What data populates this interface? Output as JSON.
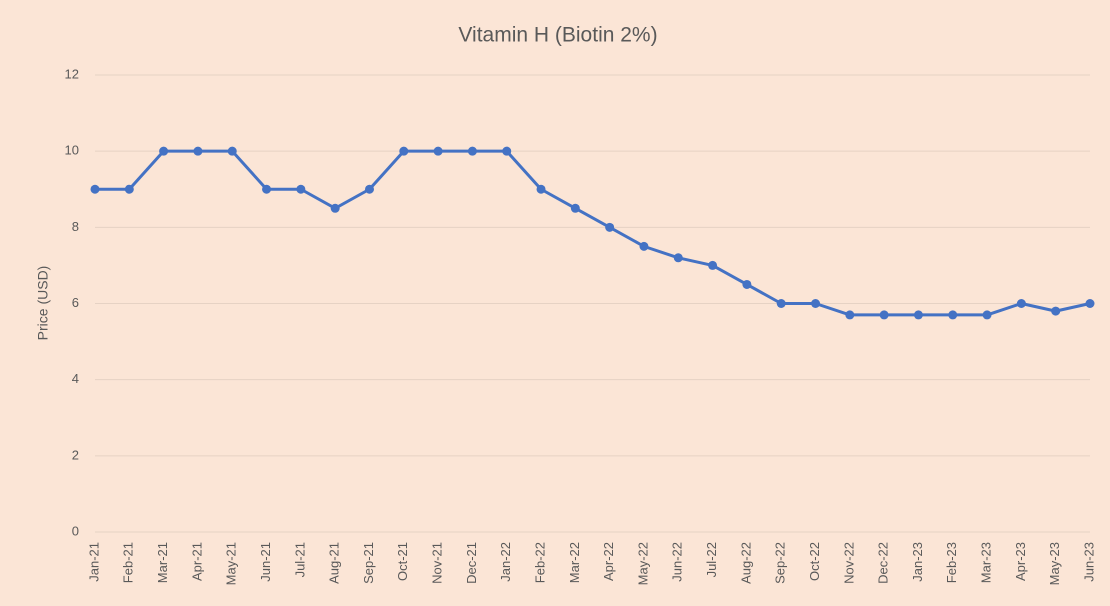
{
  "chart_data": {
    "type": "line",
    "title": "Vitamin H (Biotin 2%)",
    "y_label": "Price (USD)",
    "categories": [
      "Jan-21",
      "Feb-21",
      "Mar-21",
      "Apr-21",
      "May-21",
      "Jun-21",
      "Jul-21",
      "Aug-21",
      "Sep-21",
      "Oct-21",
      "Nov-21",
      "Dec-21",
      "Jan-22",
      "Feb-22",
      "Mar-22",
      "Apr-22",
      "May-22",
      "Jun-22",
      "Jul-22",
      "Aug-22",
      "Sep-22",
      "Oct-22",
      "Nov-22",
      "Dec-22",
      "Jan-23",
      "Feb-23",
      "Mar-23",
      "Apr-23",
      "May-23",
      "Jun-23"
    ],
    "values": [
      9,
      9,
      10,
      10,
      10,
      9,
      9,
      8.5,
      9,
      10,
      10,
      10,
      10,
      9,
      8.5,
      8,
      7.5,
      7.2,
      7,
      6.5,
      6,
      6,
      5.7,
      5.7,
      5.7,
      5.7,
      5.7,
      6,
      5.8,
      6
    ],
    "color": "#4472c4",
    "ylim": [
      0,
      12
    ],
    "yticks": [
      0,
      2,
      4,
      6,
      8,
      10,
      12
    ],
    "grid": true
  }
}
